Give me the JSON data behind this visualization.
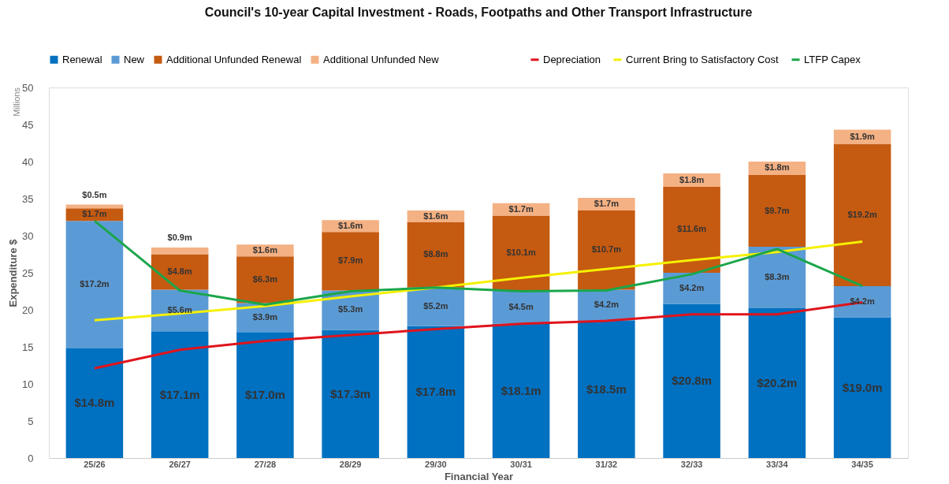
{
  "chart_data": {
    "type": "bar",
    "stacked": true,
    "title": "Council's 10-year Capital Investment - Roads, Footpaths and Other Transport Infrastructure",
    "xlabel": "Financial Year",
    "ylabel": "Expenditure $",
    "annotations": [
      "Millions"
    ],
    "categories": [
      "25/26",
      "26/27",
      "27/28",
      "28/29",
      "29/30",
      "30/31",
      "31/32",
      "32/33",
      "33/34",
      "34/35"
    ],
    "ylim": [
      0,
      50
    ],
    "yticks": [
      0,
      5,
      10,
      15,
      20,
      25,
      30,
      35,
      40,
      45,
      50
    ],
    "legend": "top",
    "series": [
      {
        "name": "Renewal",
        "color": "#0070c0",
        "values": [
          14.8,
          17.1,
          17.0,
          17.3,
          17.8,
          18.1,
          18.5,
          20.8,
          20.2,
          19.0
        ],
        "value_labels": [
          "$14.8m",
          "$17.1m",
          "$17.0m",
          "$17.3m",
          "$17.8m",
          "$18.1m",
          "$18.5m",
          "$20.8m",
          "$20.2m",
          "$19.0m"
        ]
      },
      {
        "name": "New",
        "color": "#5b9bd5",
        "values": [
          17.2,
          5.6,
          3.9,
          5.3,
          5.2,
          4.5,
          4.2,
          4.2,
          8.3,
          4.2
        ],
        "value_labels": [
          "$17.2m",
          "$5.6m",
          "$3.9m",
          "$5.3m",
          "$5.2m",
          "$4.5m",
          "$4.2m",
          "$4.2m",
          "$8.3m",
          "$4.2m"
        ]
      },
      {
        "name": "Additional Unfunded Renewal",
        "color": "#c55a11",
        "values": [
          1.7,
          4.8,
          6.3,
          7.9,
          8.8,
          10.1,
          10.7,
          11.6,
          9.7,
          19.2
        ],
        "value_labels": [
          "$1.7m",
          "$4.8m",
          "$6.3m",
          "$7.9m",
          "$8.8m",
          "$10.1m",
          "$10.7m",
          "$11.6m",
          "$9.7m",
          "$19.2m"
        ]
      },
      {
        "name": "Additional Unfunded New",
        "color": "#f4b183",
        "values": [
          0.5,
          0.9,
          1.6,
          1.6,
          1.6,
          1.7,
          1.7,
          1.8,
          1.8,
          1.9
        ],
        "value_labels": [
          "$0.5m",
          "$0.9m",
          "$1.6m",
          "$1.6m",
          "$1.6m",
          "$1.7m",
          "$1.7m",
          "$1.8m",
          "$1.8m",
          "$1.9m"
        ]
      },
      {
        "name": "Depreciation",
        "type": "line",
        "color": "#e0141c",
        "values": [
          12.1,
          14.6,
          15.8,
          16.6,
          17.4,
          18.1,
          18.5,
          19.4,
          19.4,
          21.0
        ]
      },
      {
        "name": "Current Bring to Satisfactory Cost",
        "type": "line",
        "color": "#f5f000",
        "values": [
          18.6,
          19.5,
          20.5,
          21.8,
          23.0,
          24.3,
          25.5,
          26.7,
          27.8,
          29.2
        ]
      },
      {
        "name": "LTFP Capex",
        "type": "line",
        "color": "#1aa64a",
        "values": [
          32.0,
          22.6,
          20.7,
          22.5,
          23.0,
          22.5,
          22.6,
          24.8,
          28.2,
          23.2
        ]
      }
    ]
  }
}
